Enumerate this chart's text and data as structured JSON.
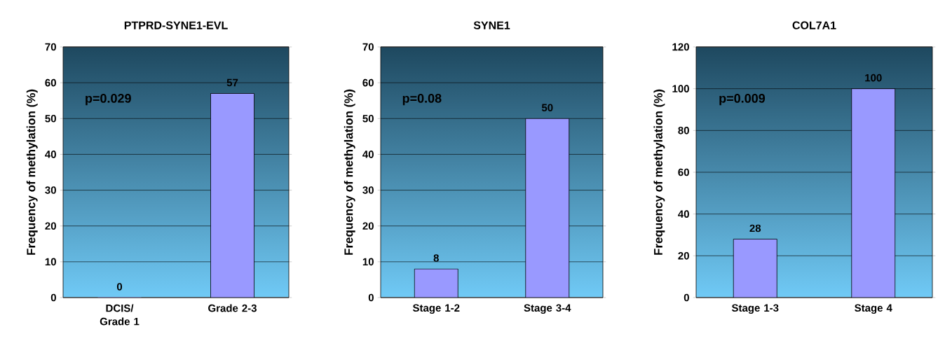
{
  "chart_data": [
    {
      "type": "bar",
      "title": "PTPRD-SYNE1-EVL",
      "ylabel": "Frequency of methylation (%)",
      "categories": [
        "DCIS/ Grade 1",
        "Grade 2-3"
      ],
      "values": [
        0,
        57
      ],
      "color": "#9999ff",
      "ylim": [
        0,
        70
      ],
      "yticks": [
        0,
        10,
        20,
        30,
        40,
        50,
        60,
        70
      ],
      "grid": "y",
      "data_labels": true,
      "annotations": [
        "p=0.029"
      ]
    },
    {
      "type": "bar",
      "title": "SYNE1",
      "ylabel": "Frequency of methylation (%)",
      "categories": [
        "Stage 1-2",
        "Stage 3-4"
      ],
      "values": [
        8,
        50
      ],
      "color": "#9999ff",
      "ylim": [
        0,
        70
      ],
      "yticks": [
        0,
        10,
        20,
        30,
        40,
        50,
        60,
        70
      ],
      "grid": "y",
      "data_labels": true,
      "annotations": [
        "p=0.08"
      ]
    },
    {
      "type": "bar",
      "title": "COL7A1",
      "ylabel": "Frequency of methylation (%)",
      "categories": [
        "Stage 1-3",
        "Stage 4"
      ],
      "values": [
        28,
        100
      ],
      "color": "#9999ff",
      "ylim": [
        0,
        120
      ],
      "yticks": [
        0,
        20,
        40,
        60,
        80,
        100,
        120
      ],
      "grid": "y",
      "data_labels": true,
      "annotations": [
        "p=0.009"
      ]
    }
  ]
}
